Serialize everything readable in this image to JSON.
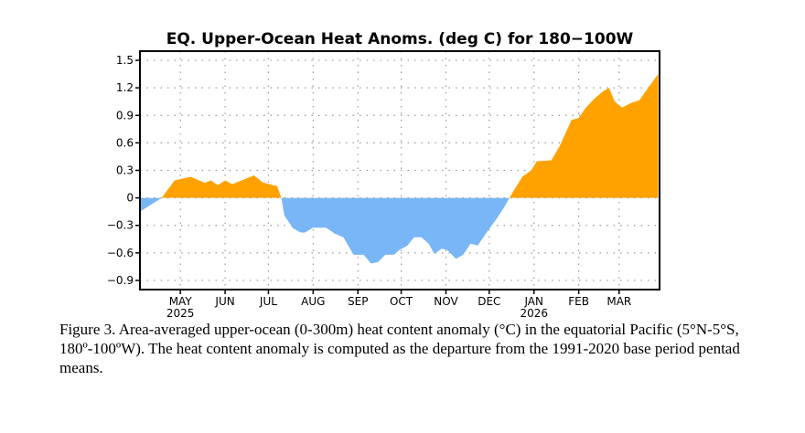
{
  "chart_data": {
    "type": "area",
    "title": "EQ. Upper-Ocean Heat Anoms. (deg C) for 180−100W",
    "xlabel": "",
    "ylabel": "",
    "ylim": [
      -1.0,
      1.6
    ],
    "xlim": [
      "2025-04-03",
      "2026-03-29"
    ],
    "yticks": [
      1.5,
      1.2,
      0.9,
      0.6,
      0.3,
      0,
      -0.3,
      -0.6,
      -0.9
    ],
    "ytick_labels": [
      "1.5",
      "1.2",
      "0.9",
      "0.6",
      "0.3",
      "0",
      "−0.3",
      "−0.6",
      "−0.9"
    ],
    "xticks": [
      {
        "date": "2025-05-01",
        "label": "MAY",
        "year": "2025"
      },
      {
        "date": "2025-06-01",
        "label": "JUN",
        "year": ""
      },
      {
        "date": "2025-07-01",
        "label": "JUL",
        "year": ""
      },
      {
        "date": "2025-08-01",
        "label": "AUG",
        "year": ""
      },
      {
        "date": "2025-09-01",
        "label": "SEP",
        "year": ""
      },
      {
        "date": "2025-10-01",
        "label": "OCT",
        "year": ""
      },
      {
        "date": "2025-11-01",
        "label": "NOV",
        "year": ""
      },
      {
        "date": "2025-12-01",
        "label": "DEC",
        "year": ""
      },
      {
        "date": "2026-01-01",
        "label": "JAN",
        "year": "2026"
      },
      {
        "date": "2026-02-01",
        "label": "FEB",
        "year": ""
      },
      {
        "date": "2026-03-01",
        "label": "MAR",
        "year": ""
      }
    ],
    "grid": true,
    "colors": {
      "positive": "#ffa200",
      "negative": "#78b6f5"
    },
    "x": [
      "2025-04-03",
      "2025-04-18",
      "2025-04-27",
      "2025-05-08",
      "2025-05-18",
      "2025-05-22",
      "2025-05-27",
      "2025-06-01",
      "2025-06-06",
      "2025-06-14",
      "2025-06-21",
      "2025-06-27",
      "2025-07-04",
      "2025-07-07",
      "2025-07-10",
      "2025-07-12",
      "2025-07-18",
      "2025-07-23",
      "2025-07-26",
      "2025-08-01",
      "2025-08-10",
      "2025-08-16",
      "2025-08-22",
      "2025-08-29",
      "2025-09-05",
      "2025-09-10",
      "2025-09-15",
      "2025-09-20",
      "2025-09-26",
      "2025-09-30",
      "2025-10-05",
      "2025-10-10",
      "2025-10-15",
      "2025-10-20",
      "2025-10-24",
      "2025-10-29",
      "2025-11-02",
      "2025-11-08",
      "2025-11-13",
      "2025-11-18",
      "2025-11-23",
      "2025-11-30",
      "2025-12-06",
      "2025-12-11",
      "2025-12-15",
      "2025-12-19",
      "2025-12-24",
      "2025-12-30",
      "2026-01-03",
      "2026-01-13",
      "2026-01-19",
      "2026-01-27",
      "2026-02-01",
      "2026-02-06",
      "2026-02-12",
      "2026-02-18",
      "2026-02-22",
      "2026-02-26",
      "2026-03-03",
      "2026-03-10",
      "2026-03-15",
      "2026-03-22",
      "2026-03-28"
    ],
    "values": [
      -0.15,
      0,
      0.19,
      0.23,
      0.165,
      0.19,
      0.14,
      0.19,
      0.15,
      0.2,
      0.245,
      0.17,
      0.14,
      0.13,
      0,
      -0.19,
      -0.33,
      -0.375,
      -0.38,
      -0.325,
      -0.325,
      -0.39,
      -0.43,
      -0.62,
      -0.62,
      -0.715,
      -0.7,
      -0.62,
      -0.62,
      -0.565,
      -0.525,
      -0.43,
      -0.43,
      -0.5,
      -0.61,
      -0.555,
      -0.57,
      -0.665,
      -0.62,
      -0.5,
      -0.52,
      -0.36,
      -0.23,
      -0.11,
      0,
      0.105,
      0.23,
      0.3,
      0.4,
      0.41,
      0.57,
      0.85,
      0.87,
      0.985,
      1.085,
      1.165,
      1.2,
      1.05,
      0.985,
      1.04,
      1.065,
      1.22,
      1.35
    ]
  },
  "caption": "Figure 3. Area-averaged upper-ocean (0-300m) heat content anomaly (°C) in the equatorial Pacific (5°N-5°S, 180º-100ºW). The heat content anomaly is computed as the departure from the 1991-2020 base period pentad means."
}
